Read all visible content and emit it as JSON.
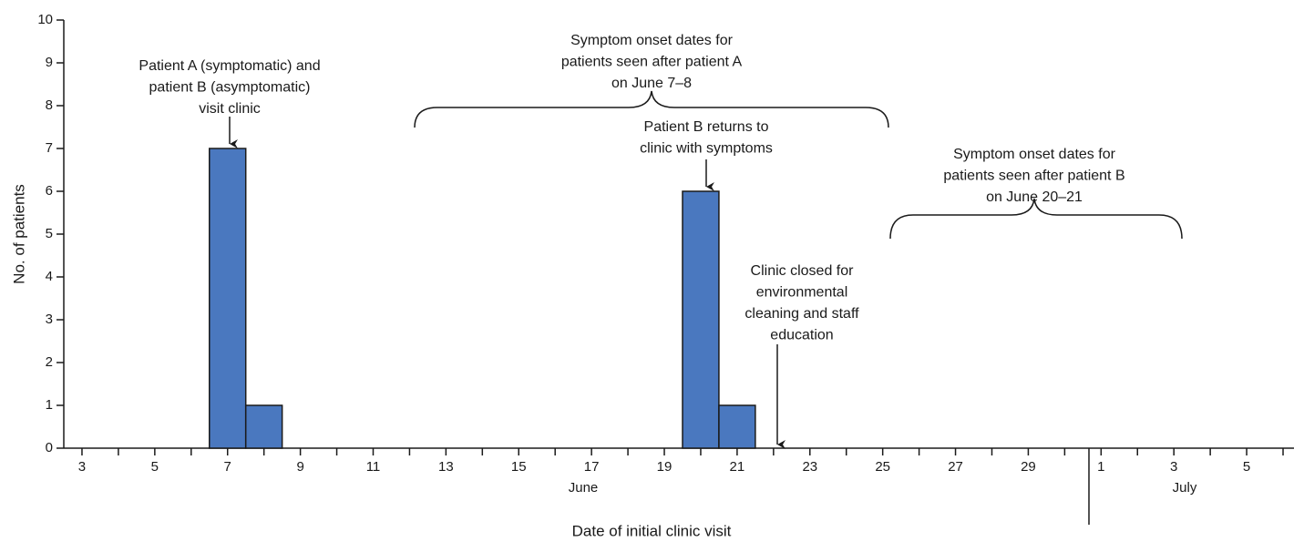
{
  "chart_data": {
    "type": "bar",
    "x_label": "Date of initial clinic visit",
    "y_label": "No. of patients",
    "x": [
      7,
      8,
      20,
      21
    ],
    "values": [
      7,
      1,
      6,
      1
    ],
    "color": "#4a78bf",
    "xlim": [
      2.5,
      36.3
    ],
    "ylim": [
      0,
      10
    ],
    "yticks": [
      0,
      1,
      2,
      3,
      4,
      5,
      6,
      7,
      8,
      9,
      10
    ],
    "xticks": [
      3,
      5,
      7,
      9,
      11,
      13,
      15,
      17,
      19,
      21,
      23,
      25,
      27,
      29,
      {
        "value": 31,
        "label": "1"
      },
      {
        "value": 33,
        "label": "3"
      },
      {
        "value": 35,
        "label": "5"
      }
    ],
    "xminorticks": [
      4,
      6,
      8,
      10,
      12,
      14,
      16,
      18,
      20,
      22,
      24,
      26,
      28,
      30,
      32,
      34,
      36
    ],
    "months": [
      "June",
      "July"
    ],
    "annotations": [
      [
        "Patient A (symptomatic) and",
        "patient B (asymptomatic)",
        "visit clinic"
      ],
      [
        "Symptom onset dates for",
        "patients seen after patient A",
        "on June 7–8"
      ],
      [
        "Patient B returns to",
        "clinic with symptoms"
      ],
      [
        "Clinic closed for",
        "environmental",
        "cleaning and staff",
        "education"
      ],
      [
        "Symptom onset dates for",
        "patients seen after patient B",
        "on June 20–21"
      ]
    ]
  }
}
